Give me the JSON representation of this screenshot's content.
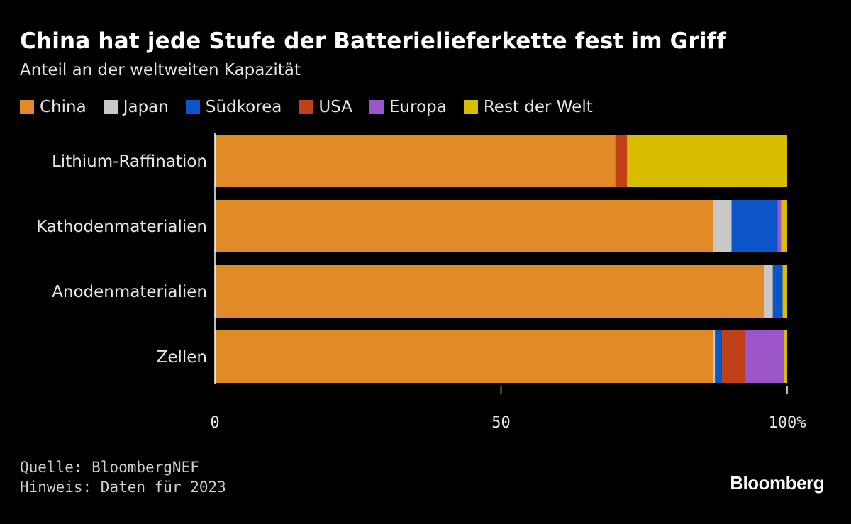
{
  "header": {
    "title": "China hat jede Stufe der Batterielieferkette fest im Griff",
    "subtitle": "Anteil an der weltweiten Kapazität"
  },
  "legend": [
    {
      "label": "China",
      "color": "#e08a28"
    },
    {
      "label": "Japan",
      "color": "#c8c8c8"
    },
    {
      "label": "Südkorea",
      "color": "#0b55c8"
    },
    {
      "label": "USA",
      "color": "#c04018"
    },
    {
      "label": "Europa",
      "color": "#9a55c8"
    },
    {
      "label": "Rest der Welt",
      "color": "#d8bc00"
    }
  ],
  "chart_data": {
    "type": "bar",
    "orientation": "horizontal",
    "stacked": true,
    "title": "China hat jede Stufe der Batterielieferkette fest im Griff",
    "subtitle": "Anteil an der weltweiten Kapazität",
    "categories": [
      "Lithium-Raffination",
      "Kathodenmaterialien",
      "Anodenmaterialien",
      "Zellen"
    ],
    "series": [
      {
        "name": "China",
        "color": "#e08a28",
        "values": [
          70,
          87,
          96,
          87
        ]
      },
      {
        "name": "Japan",
        "color": "#c8c8c8",
        "values": [
          0,
          3.3,
          1.5,
          0.4
        ]
      },
      {
        "name": "Südkorea",
        "color": "#0b55c8",
        "values": [
          0,
          8,
          1.7,
          1.2
        ]
      },
      {
        "name": "USA",
        "color": "#c04018",
        "values": [
          2,
          0,
          0,
          4
        ]
      },
      {
        "name": "Europa",
        "color": "#9a55c8",
        "values": [
          0,
          0.6,
          0,
          6.8
        ]
      },
      {
        "name": "Rest der Welt",
        "color": "#d8bc00",
        "values": [
          28,
          1.1,
          0.8,
          0.6
        ]
      }
    ],
    "xlim": [
      0,
      100
    ],
    "xticks": [
      0,
      50,
      100
    ],
    "xtick_labels": [
      "0",
      "50",
      "100%"
    ],
    "legend_position": "top"
  },
  "footer": {
    "source": "Quelle: BloombergNEF",
    "note": "Hinweis: Daten für 2023"
  },
  "brand": "Bloomberg"
}
